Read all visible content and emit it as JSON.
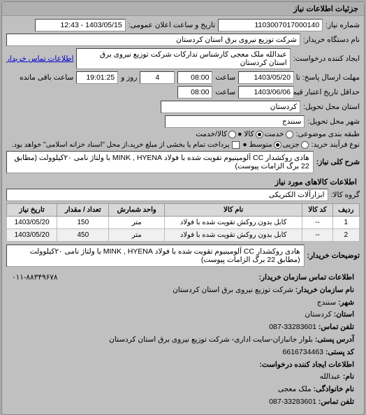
{
  "panel_title": "جزئیات اطلاعات نیاز",
  "fields": {
    "request_no_label": "شماره نیاز:",
    "request_no": "1103007017000140",
    "announce_label": "تاریخ و ساعت اعلان عمومی:",
    "announce_val": "1403/05/15 - 12:43",
    "buyer_org_label": "نام دستگاه خریدار:",
    "buyer_org": "شرکت توزیع نیروی برق استان کردستان",
    "creator_label": "ایجاد کننده درخواست:",
    "creator": "عبدالله ملک معجی کارشناس تدارکات شرکت توزیع نیروی برق استان کردستان",
    "buyer_contact_link": "اطلاعات تماس خریدار",
    "deadline_send_label": "مهلت ارسال پاسخ: تا تاریخ:",
    "deadline_send_date": "1403/05/20",
    "time_label": "ساعت",
    "deadline_send_time": "08:00",
    "days_label": "روز و",
    "days_val": "4",
    "remain_label": "ساعت باقی مانده",
    "remain_val": "19:01:25",
    "deadline_price_label": "حداقل تاریخ اعتبار قیمت: تا تاریخ:",
    "deadline_price_date": "1403/06/06",
    "deadline_price_time": "08:00",
    "province_label": "استان محل تحویل:",
    "province": "کردستان",
    "city_label": "شهر محل تحویل:",
    "city": "سنندج",
    "category_label": "طبقه بندی موضوعی:",
    "cat_service": "خدمت",
    "cat_goods": "کالا ●",
    "cat_both": "کالا/خدمت",
    "process_label": "نوع فرآیند خرید:",
    "proc_small": "جزیی",
    "proc_mid": "متوسط ●",
    "settle_note": "پرداخت تمام یا بخشی از مبلغ خرید،از محل \"اسناد خزانه اسلامی\" خواهد بود.",
    "keywords_label": "شرح کلی نیاز:",
    "keywords": "هادی روکشدار CC آلومینیوم تقویت شده با فولاد MINK , HYENA با ولتاژ نامی ۲۰کیلوولت (مطابق 22 برگ الزامات پیوست)",
    "items_title": "اطلاعات کالاهای مورد نیاز",
    "group_label": "گروه کالا:",
    "group_val": "ابزارآلات الکتریکی",
    "notes_label": "توضیحات خریدار:",
    "notes": "هادی روکشدار CC آلومینیوم تقویت شده با فولاد MINK , HYENA با ولتاژ نامی ۲۰کیلوولت (مطابق 22 برگ الزامات پیوست)"
  },
  "table": {
    "headers": {
      "row": "ردیف",
      "code": "کد کالا",
      "name": "نام کالا",
      "unit": "واحد شمارش",
      "qty": "تعداد / مقدار",
      "date": "تاریخ نیاز"
    },
    "rows": [
      {
        "n": "1",
        "code": "--",
        "name": "کابل بدون روکش تقویت شده با فولاد",
        "unit": "متر",
        "qty": "150",
        "date": "1403/05/20"
      },
      {
        "n": "2",
        "code": "--",
        "name": "کابل بدون روکش تقویت شده با فولاد",
        "unit": "متر",
        "qty": "450",
        "date": "1403/05/20"
      }
    ]
  },
  "contact": {
    "title": "اطلاعات تماس سازمان خریدار:",
    "org_label": "نام سازمان خریدار:",
    "org": "شرکت توزیع نیروی برق استان کردستان",
    "city_label": "شهر:",
    "city": "سنندج",
    "province_label": "استان:",
    "province": "کردستان",
    "phone_label": "تلفن تماس:",
    "phone": "33283601-087",
    "address_label": "آدرس پستی:",
    "address": "بلوار جانبازان-سایت اداری- شرکت توزیع نیروی برق استان کردستان",
    "postcode_label": "کد پستی:",
    "postcode": "6616734463",
    "creator_title": "اطلاعات ایجاد کننده درخواست:",
    "name_label": "نام:",
    "name": "عبدالله",
    "family_label": "نام خانوادگی:",
    "family": "ملک معجی",
    "phone2_label": "تلفن تماس:",
    "phone2": "33283601-087",
    "extra": "۰۱۱-۸۸۳۴۹۶۷۸"
  }
}
